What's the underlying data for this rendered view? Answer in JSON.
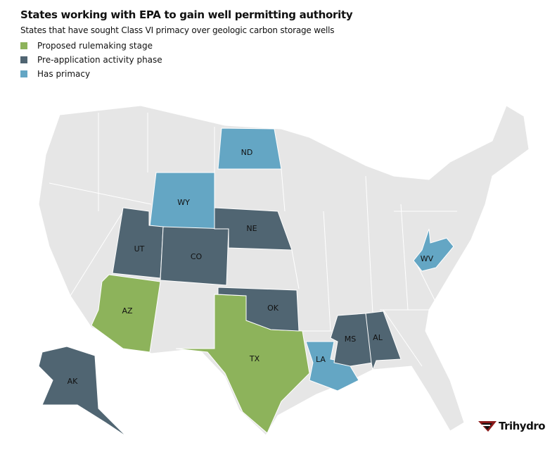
{
  "title": "States working with EPA to gain well permitting authority",
  "subtitle": "States that have sought Class VI primacy over geologic carbon storage wells",
  "legend": [
    {
      "label": "Proposed rulemaking stage",
      "color": "#8db35b"
    },
    {
      "label": "Pre-application activity phase",
      "color": "#506572"
    },
    {
      "label": "Has primacy",
      "color": "#64a6c4"
    }
  ],
  "base_color": "#e6e6e6",
  "states": [
    {
      "abbr": "ND",
      "status": "Has primacy"
    },
    {
      "abbr": "WY",
      "status": "Has primacy"
    },
    {
      "abbr": "LA",
      "status": "Has primacy"
    },
    {
      "abbr": "WV",
      "status": "Has primacy"
    },
    {
      "abbr": "AZ",
      "status": "Proposed rulemaking stage"
    },
    {
      "abbr": "TX",
      "status": "Proposed rulemaking stage"
    },
    {
      "abbr": "UT",
      "status": "Pre-application activity phase"
    },
    {
      "abbr": "CO",
      "status": "Pre-application activity phase"
    },
    {
      "abbr": "NE",
      "status": "Pre-application activity phase"
    },
    {
      "abbr": "OK",
      "status": "Pre-application activity phase"
    },
    {
      "abbr": "MS",
      "status": "Pre-application activity phase"
    },
    {
      "abbr": "AL",
      "status": "Pre-application activity phase"
    },
    {
      "abbr": "AK",
      "status": "Pre-application activity phase"
    }
  ],
  "logo": "Trihydro"
}
